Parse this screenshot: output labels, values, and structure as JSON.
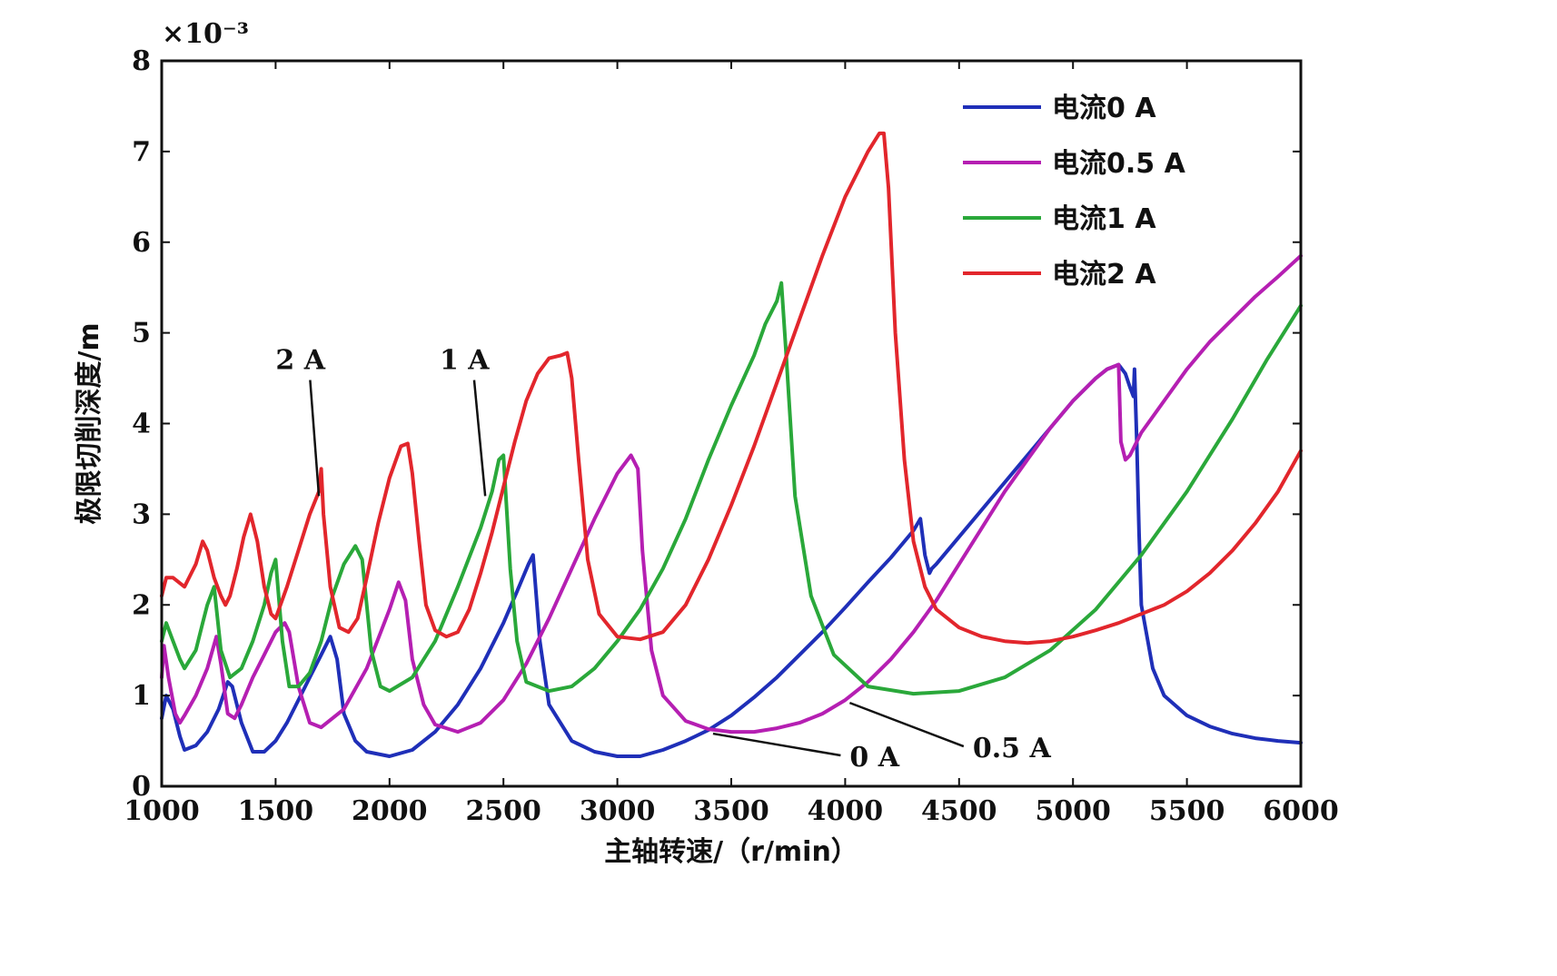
{
  "chart_data": {
    "type": "line",
    "title": "",
    "xlabel": "主轴转速/（r/min）",
    "ylabel": "极限切削深度/m",
    "y_multiplier": "×10⁻³",
    "xlim": [
      1000,
      6000
    ],
    "ylim": [
      0,
      8
    ],
    "x_ticks": [
      "1000",
      "1500",
      "2000",
      "2500",
      "3000",
      "3500",
      "4000",
      "4500",
      "5000",
      "5500",
      "6000"
    ],
    "y_ticks": [
      "0",
      "1",
      "2",
      "3",
      "4",
      "5",
      "6",
      "7",
      "8"
    ],
    "grid": false,
    "legend_position": "top-right",
    "series": [
      {
        "name": "电流0 A",
        "color": "#1f2fb8",
        "x": [
          1000,
          1020,
          1050,
          1080,
          1100,
          1150,
          1200,
          1250,
          1290,
          1310,
          1350,
          1400,
          1450,
          1500,
          1550,
          1600,
          1650,
          1700,
          1740,
          1770,
          1800,
          1850,
          1900,
          2000,
          2100,
          2200,
          2300,
          2400,
          2500,
          2560,
          2610,
          2630,
          2660,
          2700,
          2800,
          2900,
          3000,
          3100,
          3200,
          3300,
          3400,
          3500,
          3600,
          3700,
          3800,
          3900,
          4000,
          4100,
          4200,
          4300,
          4330,
          4350,
          4370,
          4380,
          4400,
          4500,
          4600,
          4700,
          4800,
          4900,
          5000,
          5100,
          5150,
          5200,
          5230,
          5250,
          5265,
          5270,
          5280,
          5290,
          5300,
          5350,
          5400,
          5500,
          5600,
          5700,
          5800,
          5900,
          6000
        ],
        "y": [
          0.75,
          1.0,
          0.85,
          0.55,
          0.4,
          0.45,
          0.6,
          0.85,
          1.15,
          1.1,
          0.7,
          0.38,
          0.38,
          0.5,
          0.7,
          0.95,
          1.2,
          1.45,
          1.65,
          1.4,
          0.8,
          0.5,
          0.38,
          0.33,
          0.4,
          0.6,
          0.9,
          1.3,
          1.8,
          2.15,
          2.45,
          2.55,
          1.6,
          0.9,
          0.5,
          0.38,
          0.33,
          0.33,
          0.4,
          0.5,
          0.62,
          0.78,
          0.98,
          1.2,
          1.45,
          1.7,
          1.97,
          2.25,
          2.52,
          2.82,
          2.95,
          2.55,
          2.35,
          2.4,
          2.45,
          2.75,
          3.05,
          3.35,
          3.65,
          3.95,
          4.25,
          4.5,
          4.6,
          4.65,
          4.55,
          4.4,
          4.3,
          4.6,
          3.8,
          2.8,
          2.0,
          1.3,
          1.0,
          0.78,
          0.66,
          0.58,
          0.53,
          0.5,
          0.48
        ]
      },
      {
        "name": "电流0.5 A",
        "color": "#b51fb2",
        "x": [
          1000,
          1010,
          1030,
          1060,
          1080,
          1100,
          1150,
          1200,
          1240,
          1260,
          1290,
          1320,
          1350,
          1400,
          1450,
          1500,
          1540,
          1560,
          1600,
          1650,
          1700,
          1800,
          1900,
          2000,
          2040,
          2070,
          2100,
          2150,
          2200,
          2300,
          2400,
          2500,
          2600,
          2700,
          2800,
          2900,
          3000,
          3060,
          3090,
          3110,
          3150,
          3200,
          3300,
          3400,
          3500,
          3600,
          3700,
          3800,
          3900,
          4000,
          4100,
          4200,
          4300,
          4400,
          4500,
          4600,
          4700,
          4800,
          4900,
          5000,
          5100,
          5150,
          5200,
          5210,
          5230,
          5250,
          5270,
          5290,
          5300,
          5400,
          5500,
          5600,
          5700,
          5800,
          5900,
          6000
        ],
        "y": [
          1.2,
          1.55,
          1.2,
          0.8,
          0.7,
          0.78,
          1.0,
          1.3,
          1.65,
          1.35,
          0.8,
          0.75,
          0.9,
          1.2,
          1.45,
          1.7,
          1.8,
          1.7,
          1.1,
          0.7,
          0.65,
          0.85,
          1.3,
          1.95,
          2.25,
          2.05,
          1.4,
          0.9,
          0.68,
          0.6,
          0.7,
          0.95,
          1.35,
          1.85,
          2.4,
          2.95,
          3.45,
          3.65,
          3.5,
          2.6,
          1.5,
          1.0,
          0.72,
          0.63,
          0.6,
          0.6,
          0.64,
          0.7,
          0.8,
          0.95,
          1.15,
          1.4,
          1.7,
          2.05,
          2.45,
          2.85,
          3.25,
          3.6,
          3.95,
          4.25,
          4.5,
          4.6,
          4.65,
          3.8,
          3.6,
          3.65,
          3.75,
          3.85,
          3.9,
          4.25,
          4.6,
          4.9,
          5.15,
          5.4,
          5.62,
          5.85
        ]
      },
      {
        "name": "电流1 A",
        "color": "#2aa83a",
        "x": [
          1000,
          1020,
          1050,
          1080,
          1100,
          1150,
          1180,
          1200,
          1230,
          1260,
          1300,
          1350,
          1400,
          1450,
          1480,
          1500,
          1530,
          1560,
          1600,
          1650,
          1700,
          1750,
          1800,
          1850,
          1880,
          1920,
          1960,
          2000,
          2100,
          2200,
          2300,
          2400,
          2450,
          2480,
          2500,
          2530,
          2560,
          2600,
          2700,
          2800,
          2900,
          3000,
          3100,
          3200,
          3300,
          3400,
          3500,
          3600,
          3650,
          3700,
          3720,
          3740,
          3780,
          3850,
          3950,
          4100,
          4300,
          4500,
          4700,
          4900,
          5100,
          5300,
          5500,
          5700,
          5850,
          6000
        ],
        "y": [
          1.6,
          1.8,
          1.6,
          1.4,
          1.3,
          1.5,
          1.8,
          2.0,
          2.2,
          1.5,
          1.2,
          1.3,
          1.6,
          2.0,
          2.35,
          2.5,
          1.6,
          1.1,
          1.1,
          1.25,
          1.6,
          2.1,
          2.45,
          2.65,
          2.5,
          1.5,
          1.1,
          1.05,
          1.2,
          1.6,
          2.2,
          2.85,
          3.25,
          3.6,
          3.65,
          2.4,
          1.6,
          1.15,
          1.05,
          1.1,
          1.3,
          1.6,
          1.95,
          2.4,
          2.95,
          3.6,
          4.2,
          4.75,
          5.1,
          5.35,
          5.55,
          4.8,
          3.2,
          2.1,
          1.45,
          1.1,
          1.02,
          1.05,
          1.2,
          1.5,
          1.95,
          2.55,
          3.25,
          4.05,
          4.7,
          5.3
        ]
      },
      {
        "name": "电流2 A",
        "color": "#e2262c",
        "x": [
          1000,
          1020,
          1050,
          1100,
          1150,
          1180,
          1200,
          1230,
          1260,
          1280,
          1300,
          1330,
          1360,
          1390,
          1420,
          1450,
          1480,
          1500,
          1550,
          1600,
          1650,
          1690,
          1700,
          1710,
          1740,
          1780,
          1820,
          1860,
          1900,
          1950,
          2000,
          2050,
          2080,
          2100,
          2130,
          2160,
          2200,
          2250,
          2300,
          2350,
          2400,
          2450,
          2500,
          2550,
          2600,
          2650,
          2700,
          2750,
          2780,
          2800,
          2830,
          2870,
          2920,
          3000,
          3100,
          3200,
          3300,
          3400,
          3500,
          3600,
          3700,
          3800,
          3900,
          4000,
          4100,
          4150,
          4170,
          4190,
          4220,
          4260,
          4300,
          4350,
          4400,
          4500,
          4600,
          4700,
          4800,
          4900,
          5000,
          5100,
          5200,
          5300,
          5400,
          5500,
          5600,
          5700,
          5800,
          5900,
          6000
        ],
        "y": [
          2.1,
          2.3,
          2.3,
          2.2,
          2.45,
          2.7,
          2.6,
          2.3,
          2.1,
          2.0,
          2.1,
          2.4,
          2.75,
          3.0,
          2.7,
          2.2,
          1.9,
          1.85,
          2.2,
          2.6,
          3.0,
          3.25,
          3.5,
          3.0,
          2.2,
          1.75,
          1.7,
          1.85,
          2.3,
          2.9,
          3.4,
          3.75,
          3.78,
          3.45,
          2.7,
          2.0,
          1.72,
          1.65,
          1.7,
          1.95,
          2.35,
          2.8,
          3.3,
          3.8,
          4.25,
          4.55,
          4.72,
          4.75,
          4.78,
          4.5,
          3.6,
          2.5,
          1.9,
          1.65,
          1.62,
          1.7,
          2.0,
          2.5,
          3.1,
          3.75,
          4.45,
          5.15,
          5.85,
          6.5,
          7.0,
          7.2,
          7.2,
          6.6,
          5.0,
          3.6,
          2.7,
          2.2,
          1.95,
          1.75,
          1.65,
          1.6,
          1.58,
          1.6,
          1.65,
          1.72,
          1.8,
          1.9,
          2.0,
          2.15,
          2.35,
          2.6,
          2.9,
          3.25,
          3.7
        ]
      }
    ],
    "annotations": [
      {
        "text": "2 A",
        "label_x": 1500,
        "label_y": 4.6,
        "tip_x": 1690,
        "tip_y": 3.2
      },
      {
        "text": "1 A",
        "label_x": 2220,
        "label_y": 4.6,
        "tip_x": 2420,
        "tip_y": 3.2
      },
      {
        "text": "0 A",
        "label_x": 4020,
        "label_y": 0.22,
        "tip_x": 3420,
        "tip_y": 0.58
      },
      {
        "text": "0.5 A",
        "label_x": 4560,
        "label_y": 0.32,
        "tip_x": 4020,
        "tip_y": 0.92
      }
    ]
  }
}
